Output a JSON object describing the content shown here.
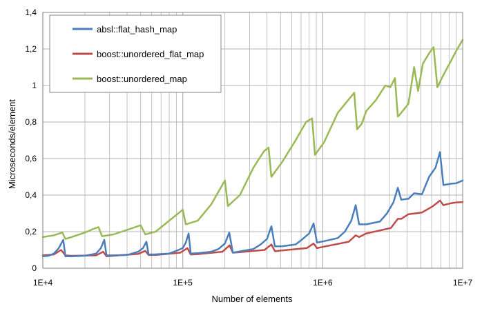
{
  "colors": {
    "absl": "#4a7ebb",
    "boost_flat": "#be4b48",
    "boost_std": "#98b954",
    "grid": "#b3b3b3",
    "plot_border": "#868686"
  },
  "chart_data": {
    "type": "line",
    "xscale": "log",
    "xlim": [
      10000,
      10000000
    ],
    "ylim": [
      0,
      1.4
    ],
    "xlabel": "Number of elements",
    "ylabel": "Microseconds/element",
    "xticks": [
      {
        "value": 10000,
        "label": "1E+4"
      },
      {
        "value": 100000,
        "label": "1E+5"
      },
      {
        "value": 1000000,
        "label": "1E+6"
      },
      {
        "value": 10000000,
        "label": "1E+7"
      }
    ],
    "yticks": [
      {
        "value": 0,
        "label": "0"
      },
      {
        "value": 0.2,
        "label": "0,2"
      },
      {
        "value": 0.4,
        "label": "0,4"
      },
      {
        "value": 0.6,
        "label": "0,6"
      },
      {
        "value": 0.8,
        "label": "0,8"
      },
      {
        "value": 1.0,
        "label": "1"
      },
      {
        "value": 1.2,
        "label": "1,2"
      },
      {
        "value": 1.4,
        "label": "1,4"
      }
    ],
    "grid": true,
    "legend_position": "top-left",
    "series": [
      {
        "name": "absl::flat_hash_map",
        "color_key": "absl",
        "points": [
          [
            10000,
            0.065
          ],
          [
            11000,
            0.068
          ],
          [
            12000,
            0.08
          ],
          [
            13000,
            0.11
          ],
          [
            14000,
            0.155
          ],
          [
            14500,
            0.065
          ],
          [
            16000,
            0.065
          ],
          [
            20000,
            0.068
          ],
          [
            24000,
            0.08
          ],
          [
            26000,
            0.11
          ],
          [
            27500,
            0.155
          ],
          [
            28500,
            0.07
          ],
          [
            32000,
            0.07
          ],
          [
            40000,
            0.072
          ],
          [
            48000,
            0.09
          ],
          [
            52000,
            0.11
          ],
          [
            55000,
            0.145
          ],
          [
            57000,
            0.075
          ],
          [
            64000,
            0.076
          ],
          [
            80000,
            0.08
          ],
          [
            90000,
            0.095
          ],
          [
            100000,
            0.11
          ],
          [
            105000,
            0.14
          ],
          [
            110000,
            0.19
          ],
          [
            114000,
            0.08
          ],
          [
            128000,
            0.082
          ],
          [
            160000,
            0.09
          ],
          [
            180000,
            0.105
          ],
          [
            200000,
            0.135
          ],
          [
            215000,
            0.195
          ],
          [
            228000,
            0.085
          ],
          [
            256000,
            0.092
          ],
          [
            320000,
            0.105
          ],
          [
            360000,
            0.13
          ],
          [
            400000,
            0.16
          ],
          [
            430000,
            0.23
          ],
          [
            455000,
            0.12
          ],
          [
            512000,
            0.12
          ],
          [
            640000,
            0.13
          ],
          [
            720000,
            0.16
          ],
          [
            800000,
            0.19
          ],
          [
            860000,
            0.245
          ],
          [
            910000,
            0.14
          ],
          [
            1024000,
            0.148
          ],
          [
            1280000,
            0.165
          ],
          [
            1440000,
            0.2
          ],
          [
            1600000,
            0.26
          ],
          [
            1720000,
            0.345
          ],
          [
            1820000,
            0.24
          ],
          [
            2048000,
            0.24
          ],
          [
            2560000,
            0.255
          ],
          [
            2880000,
            0.3
          ],
          [
            3200000,
            0.36
          ],
          [
            3440000,
            0.44
          ],
          [
            3640000,
            0.375
          ],
          [
            4096000,
            0.38
          ],
          [
            4500000,
            0.41
          ],
          [
            5120000,
            0.405
          ],
          [
            5760000,
            0.5
          ],
          [
            6400000,
            0.55
          ],
          [
            6880000,
            0.635
          ],
          [
            7280000,
            0.455
          ],
          [
            8192000,
            0.462
          ],
          [
            9000000,
            0.465
          ],
          [
            10000000,
            0.48
          ]
        ]
      },
      {
        "name": "boost::unordered_flat_map",
        "color_key": "boost_flat",
        "points": [
          [
            10000,
            0.07
          ],
          [
            12000,
            0.075
          ],
          [
            13500,
            0.1
          ],
          [
            14500,
            0.07
          ],
          [
            16000,
            0.068
          ],
          [
            24000,
            0.07
          ],
          [
            27000,
            0.09
          ],
          [
            28500,
            0.065
          ],
          [
            32000,
            0.068
          ],
          [
            48000,
            0.078
          ],
          [
            54000,
            0.095
          ],
          [
            57000,
            0.072
          ],
          [
            64000,
            0.072
          ],
          [
            96000,
            0.085
          ],
          [
            108000,
            0.11
          ],
          [
            114000,
            0.075
          ],
          [
            128000,
            0.077
          ],
          [
            192000,
            0.09
          ],
          [
            216000,
            0.125
          ],
          [
            228000,
            0.085
          ],
          [
            256000,
            0.088
          ],
          [
            384000,
            0.1
          ],
          [
            430000,
            0.13
          ],
          [
            456000,
            0.093
          ],
          [
            512000,
            0.097
          ],
          [
            768000,
            0.11
          ],
          [
            860000,
            0.135
          ],
          [
            910000,
            0.11
          ],
          [
            1024000,
            0.118
          ],
          [
            1536000,
            0.145
          ],
          [
            1720000,
            0.18
          ],
          [
            1820000,
            0.17
          ],
          [
            2048000,
            0.19
          ],
          [
            3072000,
            0.22
          ],
          [
            3440000,
            0.27
          ],
          [
            3640000,
            0.27
          ],
          [
            4096000,
            0.295
          ],
          [
            5120000,
            0.305
          ],
          [
            6144000,
            0.34
          ],
          [
            6880000,
            0.37
          ],
          [
            7280000,
            0.345
          ],
          [
            8192000,
            0.355
          ],
          [
            9000000,
            0.36
          ],
          [
            10000000,
            0.362
          ]
        ]
      },
      {
        "name": "boost::unordered_map",
        "color_key": "boost_std",
        "points": [
          [
            10000,
            0.17
          ],
          [
            12000,
            0.18
          ],
          [
            13800,
            0.195
          ],
          [
            14500,
            0.16
          ],
          [
            16000,
            0.17
          ],
          [
            20000,
            0.195
          ],
          [
            23000,
            0.215
          ],
          [
            25000,
            0.225
          ],
          [
            26500,
            0.175
          ],
          [
            32000,
            0.185
          ],
          [
            42000,
            0.215
          ],
          [
            50000,
            0.235
          ],
          [
            54000,
            0.185
          ],
          [
            64000,
            0.2
          ],
          [
            80000,
            0.26
          ],
          [
            100000,
            0.32
          ],
          [
            105000,
            0.24
          ],
          [
            128000,
            0.26
          ],
          [
            160000,
            0.35
          ],
          [
            200000,
            0.48
          ],
          [
            210000,
            0.34
          ],
          [
            256000,
            0.4
          ],
          [
            320000,
            0.55
          ],
          [
            380000,
            0.64
          ],
          [
            410000,
            0.66
          ],
          [
            430000,
            0.5
          ],
          [
            512000,
            0.58
          ],
          [
            640000,
            0.7
          ],
          [
            760000,
            0.8
          ],
          [
            840000,
            0.82
          ],
          [
            880000,
            0.62
          ],
          [
            1024000,
            0.69
          ],
          [
            1280000,
            0.85
          ],
          [
            1520000,
            0.92
          ],
          [
            1680000,
            0.96
          ],
          [
            1760000,
            0.76
          ],
          [
            1900000,
            0.79
          ],
          [
            2048000,
            0.86
          ],
          [
            2400000,
            0.92
          ],
          [
            2800000,
            1.0
          ],
          [
            3040000,
            0.99
          ],
          [
            3280000,
            1.04
          ],
          [
            3440000,
            0.83
          ],
          [
            3640000,
            0.85
          ],
          [
            4096000,
            0.9
          ],
          [
            4500000,
            1.1
          ],
          [
            4800000,
            0.97
          ],
          [
            5200000,
            1.12
          ],
          [
            5800000,
            1.18
          ],
          [
            6200000,
            1.21
          ],
          [
            6600000,
            0.99
          ],
          [
            7200000,
            1.05
          ],
          [
            8192000,
            1.13
          ],
          [
            9000000,
            1.19
          ],
          [
            10000000,
            1.25
          ]
        ]
      }
    ]
  }
}
